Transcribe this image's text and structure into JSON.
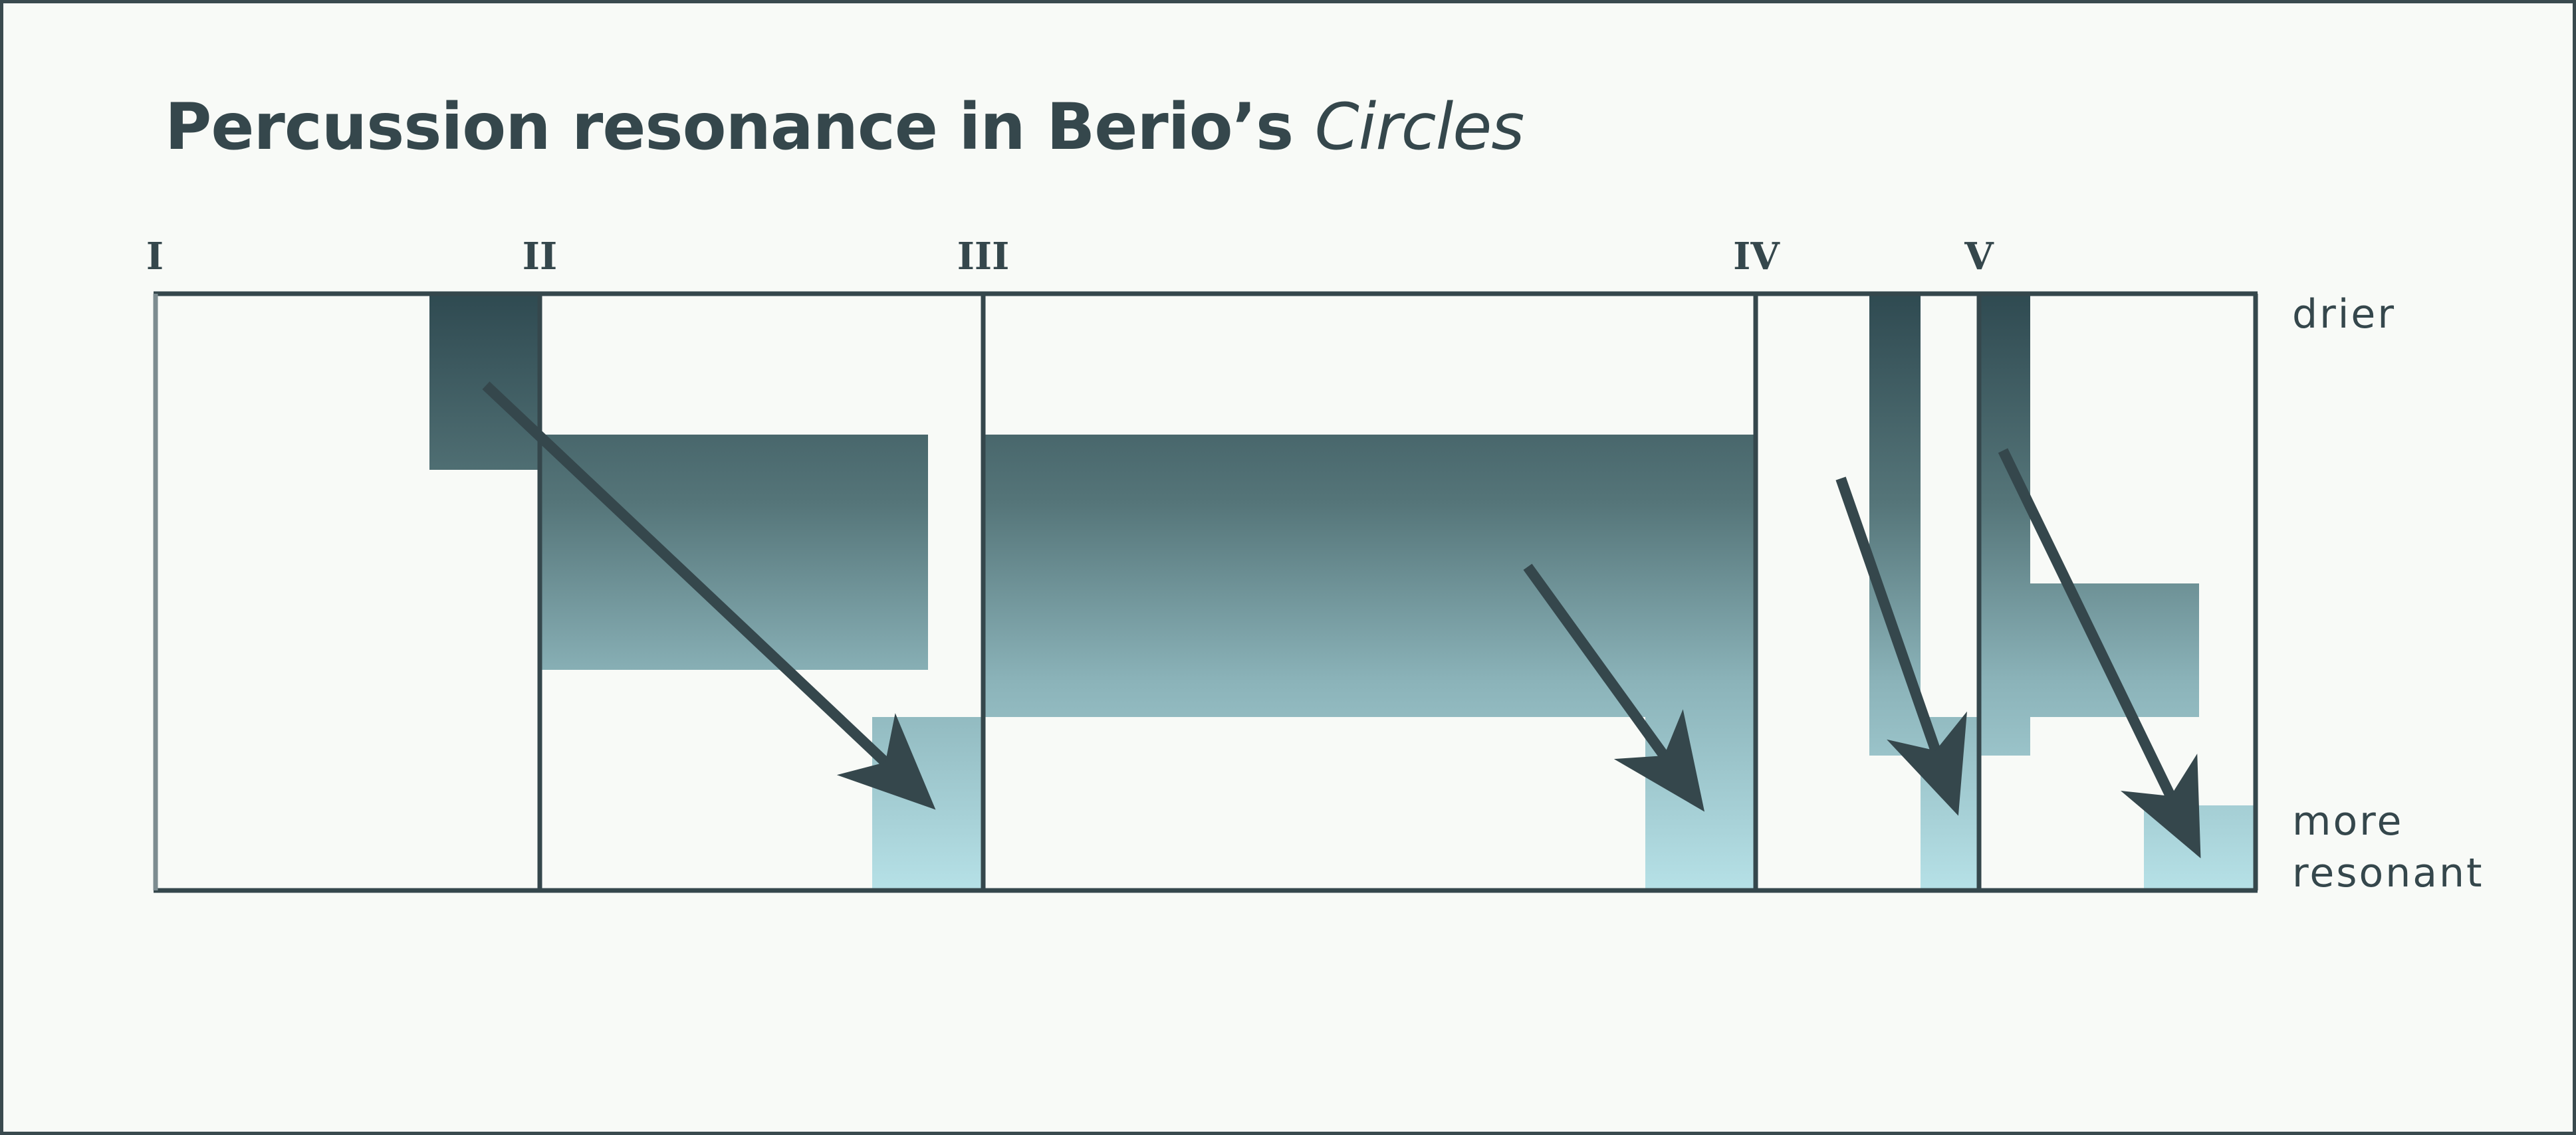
{
  "title": {
    "main": "Percussion resonance in Berio’s ",
    "work": "Circles"
  },
  "movements": [
    "I",
    "II",
    "III",
    "IV",
    "V"
  ],
  "axis_labels": {
    "top": "drier",
    "bottom_line1": "more",
    "bottom_line2": "resonant"
  },
  "colors": {
    "dark": "#2f4a51",
    "mid": "#6f969c",
    "light": "#b6e1e7",
    "line": "#35474c",
    "background": "#f8faf7"
  }
}
